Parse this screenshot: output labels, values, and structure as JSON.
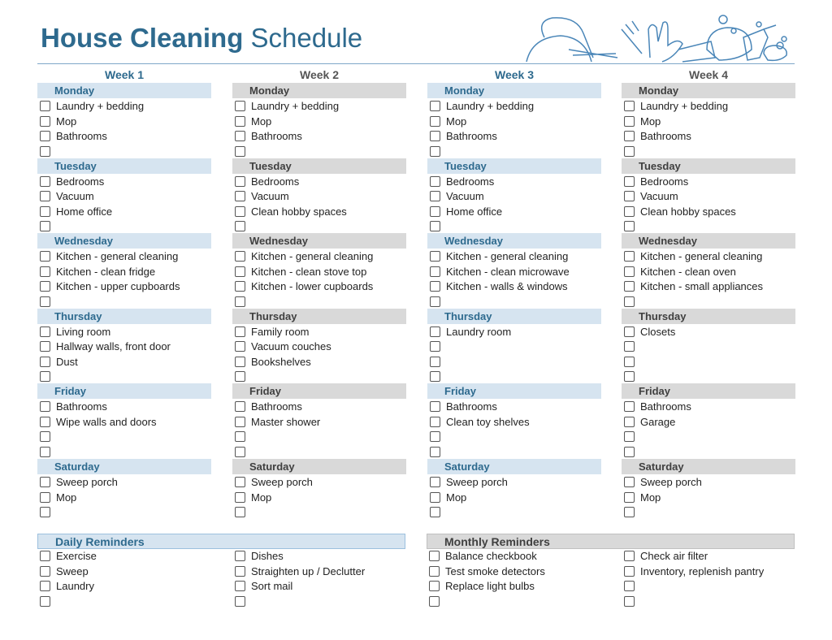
{
  "title": {
    "bold": "House Cleaning",
    "regular": "Schedule"
  },
  "colors": {
    "accent": "#2e6a8e",
    "blue_band": "#d6e4f0",
    "gray_band": "#d9d9d9"
  },
  "header_art": "cleaning-supplies-illustration",
  "weeks": [
    {
      "label": "Week 1",
      "style": "blue",
      "days": [
        {
          "day": "Monday",
          "tasks": [
            "Laundry + bedding",
            "Mop",
            "Bathrooms",
            ""
          ]
        },
        {
          "day": "Tuesday",
          "tasks": [
            "Bedrooms",
            "Vacuum",
            "Home office",
            ""
          ]
        },
        {
          "day": "Wednesday",
          "tasks": [
            "Kitchen - general cleaning",
            "Kitchen - clean fridge",
            "Kitchen - upper cupboards",
            ""
          ]
        },
        {
          "day": "Thursday",
          "tasks": [
            "Living room",
            "Hallway walls, front door",
            "Dust",
            ""
          ]
        },
        {
          "day": "Friday",
          "tasks": [
            "Bathrooms",
            "Wipe walls and doors",
            "",
            ""
          ]
        },
        {
          "day": "Saturday",
          "tasks": [
            "Sweep porch",
            "Mop",
            ""
          ]
        }
      ]
    },
    {
      "label": "Week 2",
      "style": "gray",
      "days": [
        {
          "day": "Monday",
          "tasks": [
            "Laundry + bedding",
            "Mop",
            "Bathrooms",
            ""
          ]
        },
        {
          "day": "Tuesday",
          "tasks": [
            "Bedrooms",
            "Vacuum",
            "Clean hobby spaces",
            ""
          ]
        },
        {
          "day": "Wednesday",
          "tasks": [
            "Kitchen - general cleaning",
            "Kitchen - clean stove top",
            "Kitchen - lower cupboards",
            ""
          ]
        },
        {
          "day": "Thursday",
          "tasks": [
            "Family room",
            "Vacuum couches",
            "Bookshelves",
            ""
          ]
        },
        {
          "day": "Friday",
          "tasks": [
            "Bathrooms",
            "Master shower",
            "",
            ""
          ]
        },
        {
          "day": "Saturday",
          "tasks": [
            "Sweep porch",
            "Mop",
            ""
          ]
        }
      ]
    },
    {
      "label": "Week 3",
      "style": "blue",
      "days": [
        {
          "day": "Monday",
          "tasks": [
            "Laundry + bedding",
            "Mop",
            "Bathrooms",
            ""
          ]
        },
        {
          "day": "Tuesday",
          "tasks": [
            "Bedrooms",
            "Vacuum",
            "Home office",
            ""
          ]
        },
        {
          "day": "Wednesday",
          "tasks": [
            "Kitchen - general cleaning",
            "Kitchen - clean microwave",
            "Kitchen - walls & windows",
            ""
          ]
        },
        {
          "day": "Thursday",
          "tasks": [
            "Laundry room",
            "",
            "",
            ""
          ]
        },
        {
          "day": "Friday",
          "tasks": [
            "Bathrooms",
            "Clean toy shelves",
            "",
            ""
          ]
        },
        {
          "day": "Saturday",
          "tasks": [
            "Sweep porch",
            "Mop",
            ""
          ]
        }
      ]
    },
    {
      "label": "Week 4",
      "style": "gray",
      "days": [
        {
          "day": "Monday",
          "tasks": [
            "Laundry + bedding",
            "Mop",
            "Bathrooms",
            ""
          ]
        },
        {
          "day": "Tuesday",
          "tasks": [
            "Bedrooms",
            "Vacuum",
            "Clean hobby spaces",
            ""
          ]
        },
        {
          "day": "Wednesday",
          "tasks": [
            "Kitchen - general cleaning",
            "Kitchen - clean oven",
            "Kitchen - small appliances",
            ""
          ]
        },
        {
          "day": "Thursday",
          "tasks": [
            "Closets",
            "",
            "",
            ""
          ]
        },
        {
          "day": "Friday",
          "tasks": [
            "Bathrooms",
            "Garage",
            "",
            ""
          ]
        },
        {
          "day": "Saturday",
          "tasks": [
            "Sweep porch",
            "Mop",
            ""
          ]
        }
      ]
    }
  ],
  "reminders": [
    {
      "label": "Daily Reminders",
      "style": "blue",
      "columns": [
        [
          "Exercise",
          "Sweep",
          "Laundry",
          ""
        ],
        [
          "Dishes",
          "Straighten up / Declutter",
          "Sort mail",
          ""
        ]
      ]
    },
    {
      "label": "Monthly Reminders",
      "style": "gray",
      "columns": [
        [
          "Balance checkbook",
          "Test smoke detectors",
          "Replace light bulbs",
          ""
        ],
        [
          "Check air filter",
          "Inventory, replenish pantry",
          "",
          ""
        ]
      ]
    }
  ]
}
